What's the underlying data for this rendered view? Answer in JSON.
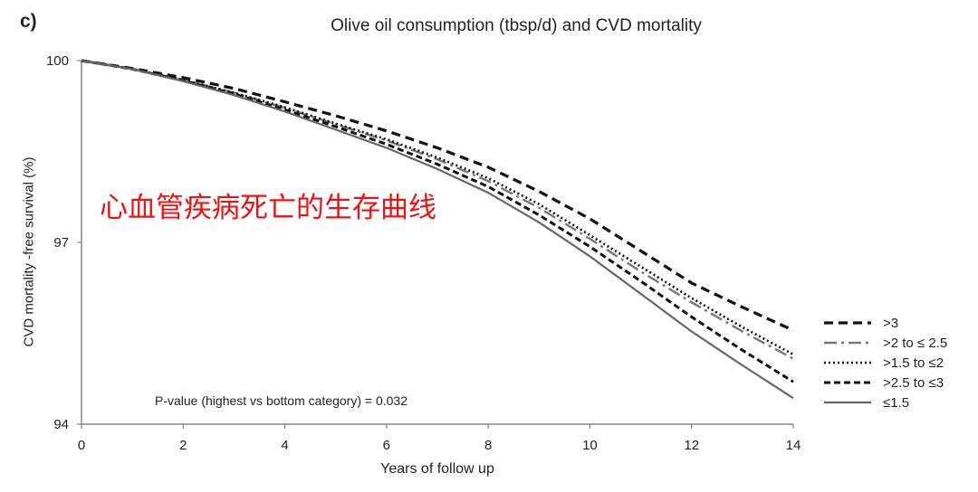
{
  "panel_label": "c)",
  "annotation": "心血管疾病死亡的生存曲线",
  "pvalue_text": "P-value (highest vs bottom category) = 0.032",
  "chart_data": {
    "type": "line",
    "title": "Olive oil consumption  (tbsp/d) and CVD mortality",
    "xlabel": "Years of follow up",
    "ylabel": "CVD mortality -free survival  (%)",
    "xlim": [
      0,
      14
    ],
    "ylim": [
      94,
      100
    ],
    "x_ticks": [
      0,
      2,
      4,
      6,
      8,
      10,
      12,
      14
    ],
    "y_ticks": [
      94,
      97,
      100
    ],
    "grid": false,
    "legend_position": "right",
    "x": [
      0,
      1,
      2,
      3,
      4,
      5,
      6,
      7,
      8,
      9,
      10,
      11,
      12,
      13,
      14
    ],
    "series": [
      {
        "name": ">3",
        "line_style": "dashed-thick",
        "color": "#111111",
        "values": [
          100,
          99.87,
          99.72,
          99.54,
          99.32,
          99.09,
          98.84,
          98.56,
          98.24,
          97.84,
          97.39,
          96.86,
          96.33,
          95.93,
          95.55
        ]
      },
      {
        "name": ">2 to ≤ 2.5",
        "line_style": "dash-dot",
        "color": "#777777",
        "values": [
          100,
          99.86,
          99.68,
          99.47,
          99.22,
          98.95,
          98.68,
          98.37,
          98.01,
          97.57,
          97.06,
          96.52,
          96.01,
          95.53,
          95.08
        ]
      },
      {
        "name": ">1.5 to ≤2",
        "line_style": "dotted",
        "color": "#111111",
        "values": [
          100,
          99.86,
          99.68,
          99.47,
          99.23,
          98.96,
          98.7,
          98.4,
          98.06,
          97.63,
          97.12,
          96.6,
          96.08,
          95.6,
          95.15
        ]
      },
      {
        "name": ">2.5 to ≤3",
        "line_style": "dashed",
        "color": "#111111",
        "values": [
          100,
          99.86,
          99.67,
          99.45,
          99.19,
          98.91,
          98.62,
          98.29,
          97.92,
          97.45,
          96.93,
          96.36,
          95.77,
          95.22,
          94.7
        ]
      },
      {
        "name": "≤1.5",
        "line_style": "solid",
        "color": "#666666",
        "values": [
          100,
          99.86,
          99.66,
          99.43,
          99.16,
          98.86,
          98.56,
          98.21,
          97.82,
          97.33,
          96.77,
          96.15,
          95.53,
          94.97,
          94.43
        ]
      }
    ]
  }
}
